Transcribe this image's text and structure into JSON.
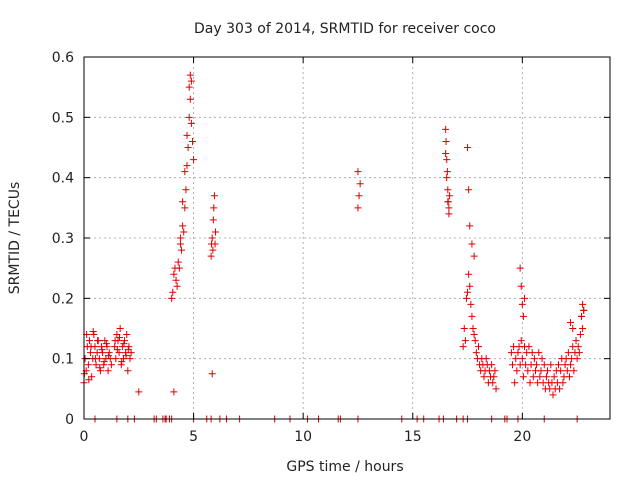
{
  "chart_data": {
    "type": "scatter",
    "title": "Day 303 of 2014, SRMTID for receiver coco",
    "xlabel": "GPS time / hours",
    "ylabel": "SRMTID / TECUs",
    "xlim": [
      0,
      24
    ],
    "ylim": [
      0,
      0.6
    ],
    "xticks": [
      0,
      5,
      10,
      15,
      20
    ],
    "yticks": [
      0,
      0.1,
      0.2,
      0.3,
      0.4,
      0.5,
      0.6
    ],
    "xtick_labels": [
      "0",
      "5",
      "10",
      "15",
      "20"
    ],
    "ytick_labels": [
      "0",
      "0.1",
      "0.2",
      "0.3",
      "0.4",
      "0.5",
      "0.6"
    ],
    "grid": true,
    "marker": "+",
    "series": [
      {
        "name": "SRMTID",
        "color": "#e00000",
        "x": [
          0.0,
          0.05,
          0.1,
          0.15,
          0.2,
          0.25,
          0.3,
          0.35,
          0.4,
          0.45,
          0.5,
          0.55,
          0.6,
          0.65,
          0.7,
          0.75,
          0.8,
          0.85,
          0.9,
          0.95,
          1.0,
          1.05,
          1.1,
          1.15,
          1.2,
          1.25,
          0.02,
          0.12,
          0.22,
          0.32,
          0.42,
          0.52,
          0.62,
          0.72,
          0.82,
          0.92,
          1.02,
          1.12,
          1.4,
          1.45,
          1.5,
          1.55,
          1.6,
          1.65,
          1.7,
          1.75,
          1.8,
          1.85,
          1.9,
          1.95,
          2.0,
          2.05,
          2.1,
          2.15,
          1.42,
          1.52,
          1.62,
          1.72,
          1.82,
          1.92,
          2.02,
          2.5,
          4.1,
          4.0,
          4.05,
          4.1,
          4.15,
          4.2,
          4.25,
          4.3,
          4.35,
          4.4,
          4.45,
          4.5,
          4.55,
          4.6,
          4.65,
          4.7,
          4.75,
          4.8,
          4.85,
          4.9,
          4.95,
          5.0,
          4.4,
          4.5,
          4.6,
          4.7,
          4.8,
          4.85,
          4.9,
          5.8,
          5.82,
          5.85,
          5.88,
          5.9,
          5.92,
          5.95,
          5.98,
          6.0,
          5.85,
          12.5,
          12.55,
          12.6,
          12.5,
          16.5,
          16.52,
          16.55,
          16.58,
          16.6,
          16.62,
          16.65,
          16.68,
          16.5,
          16.55,
          16.6,
          16.65,
          17.3,
          17.35,
          17.4,
          17.45,
          17.5,
          17.55,
          17.6,
          17.65,
          17.7,
          17.75,
          17.8,
          17.85,
          17.9,
          17.95,
          18.0,
          18.05,
          18.1,
          18.15,
          18.2,
          18.25,
          18.3,
          18.35,
          18.4,
          18.45,
          18.5,
          18.55,
          18.6,
          18.65,
          18.7,
          18.75,
          18.8,
          17.5,
          17.55,
          17.6,
          17.7,
          17.8,
          19.5,
          19.55,
          19.6,
          19.65,
          19.7,
          19.75,
          19.8,
          19.85,
          19.9,
          19.95,
          20.0,
          20.05,
          20.1,
          20.15,
          20.2,
          20.25,
          20.3,
          20.35,
          20.4,
          20.45,
          20.5,
          20.55,
          20.6,
          20.65,
          20.7,
          20.75,
          20.8,
          20.85,
          20.9,
          20.95,
          21.0,
          21.05,
          21.1,
          21.15,
          21.2,
          21.25,
          21.3,
          21.35,
          21.4,
          21.45,
          21.5,
          21.55,
          21.6,
          21.65,
          21.7,
          21.75,
          21.8,
          21.85,
          21.9,
          21.95,
          22.0,
          22.05,
          22.1,
          22.15,
          22.2,
          22.25,
          22.3,
          22.35,
          22.4,
          22.45,
          22.5,
          22.55,
          22.6,
          22.65,
          22.7,
          22.75,
          22.8,
          19.9,
          19.95,
          20.0,
          20.05,
          20.1,
          22.2,
          22.3,
          22.7,
          22.75,
          22.8,
          0.5,
          1.5,
          2.0,
          2.3,
          3.2,
          3.3,
          3.6,
          3.7,
          3.75,
          3.9,
          4.0,
          5.0,
          5.6,
          5.8,
          6.2,
          6.5,
          7.1,
          8.7,
          9.4,
          10.2,
          10.7,
          11.6,
          11.7,
          12.5,
          14.5,
          15.2,
          15.5,
          16.2,
          16.4,
          17.0,
          17.3,
          17.5,
          18.6,
          19.2,
          19.3,
          19.8,
          21.0,
          22.5
        ],
        "y": [
          0.06,
          0.1,
          0.08,
          0.12,
          0.09,
          0.13,
          0.11,
          0.07,
          0.1,
          0.14,
          0.12,
          0.09,
          0.11,
          0.13,
          0.1,
          0.08,
          0.12,
          0.11,
          0.09,
          0.13,
          0.1,
          0.12,
          0.08,
          0.11,
          0.1,
          0.09,
          0.075,
          0.14,
          0.065,
          0.12,
          0.145,
          0.1,
          0.13,
          0.085,
          0.115,
          0.095,
          0.125,
          0.105,
          0.12,
          0.1,
          0.14,
          0.13,
          0.11,
          0.15,
          0.09,
          0.12,
          0.1,
          0.13,
          0.11,
          0.14,
          0.08,
          0.12,
          0.1,
          0.11,
          0.13,
          0.115,
          0.135,
          0.095,
          0.125,
          0.105,
          0.115,
          0.045,
          0.045,
          0.2,
          0.21,
          0.24,
          0.25,
          0.23,
          0.22,
          0.26,
          0.25,
          0.3,
          0.28,
          0.32,
          0.31,
          0.35,
          0.38,
          0.42,
          0.45,
          0.5,
          0.53,
          0.56,
          0.46,
          0.43,
          0.29,
          0.36,
          0.41,
          0.47,
          0.55,
          0.57,
          0.49,
          0.27,
          0.29,
          0.3,
          0.28,
          0.33,
          0.35,
          0.37,
          0.29,
          0.31,
          0.075,
          0.35,
          0.37,
          0.39,
          0.41,
          0.48,
          0.46,
          0.43,
          0.41,
          0.38,
          0.36,
          0.35,
          0.37,
          0.44,
          0.4,
          0.36,
          0.34,
          0.12,
          0.15,
          0.13,
          0.2,
          0.21,
          0.24,
          0.22,
          0.19,
          0.17,
          0.15,
          0.14,
          0.13,
          0.11,
          0.1,
          0.12,
          0.09,
          0.08,
          0.1,
          0.09,
          0.07,
          0.08,
          0.1,
          0.09,
          0.06,
          0.08,
          0.07,
          0.09,
          0.06,
          0.07,
          0.08,
          0.05,
          0.45,
          0.38,
          0.32,
          0.29,
          0.27,
          0.11,
          0.09,
          0.12,
          0.06,
          0.1,
          0.08,
          0.11,
          0.12,
          0.09,
          0.13,
          0.1,
          0.07,
          0.12,
          0.09,
          0.11,
          0.08,
          0.12,
          0.06,
          0.09,
          0.11,
          0.07,
          0.1,
          0.08,
          0.09,
          0.06,
          0.11,
          0.07,
          0.08,
          0.1,
          0.06,
          0.09,
          0.05,
          0.07,
          0.08,
          0.06,
          0.05,
          0.09,
          0.06,
          0.04,
          0.07,
          0.05,
          0.08,
          0.06,
          0.09,
          0.05,
          0.08,
          0.1,
          0.06,
          0.07,
          0.09,
          0.1,
          0.08,
          0.11,
          0.07,
          0.09,
          0.1,
          0.12,
          0.08,
          0.11,
          0.13,
          0.1,
          0.12,
          0.11,
          0.14,
          0.17,
          0.15,
          0.18,
          0.25,
          0.22,
          0.19,
          0.17,
          0.2,
          0.16,
          0.15,
          0.17,
          0.19,
          0.18,
          0,
          0,
          0,
          0,
          0,
          0,
          0,
          0,
          0,
          0,
          0,
          0,
          0,
          0,
          0,
          0,
          0,
          0,
          0,
          0,
          0,
          0,
          0,
          0,
          0,
          0,
          0,
          0,
          0,
          0,
          0,
          0,
          0,
          0,
          0,
          0,
          0,
          0
        ]
      }
    ]
  }
}
